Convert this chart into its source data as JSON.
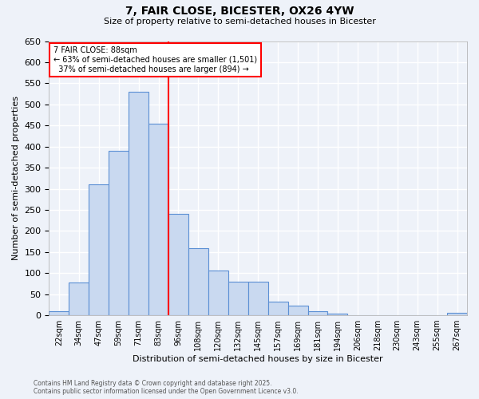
{
  "title1": "7, FAIR CLOSE, BICESTER, OX26 4YW",
  "title2": "Size of property relative to semi-detached houses in Bicester",
  "xlabel": "Distribution of semi-detached houses by size in Bicester",
  "ylabel": "Number of semi-detached properties",
  "bin_labels": [
    "22sqm",
    "34sqm",
    "47sqm",
    "59sqm",
    "71sqm",
    "83sqm",
    "96sqm",
    "108sqm",
    "120sqm",
    "132sqm",
    "145sqm",
    "157sqm",
    "169sqm",
    "181sqm",
    "194sqm",
    "206sqm",
    "218sqm",
    "230sqm",
    "243sqm",
    "255sqm",
    "267sqm"
  ],
  "bar_heights": [
    10,
    77,
    310,
    390,
    530,
    455,
    240,
    160,
    107,
    80,
    80,
    32,
    22,
    9,
    4,
    0,
    0,
    0,
    0,
    0,
    5
  ],
  "bar_color": "#c9d9f0",
  "bar_edge_color": "#5b8fd4",
  "property_label": "7 FAIR CLOSE: 88sqm",
  "vline_x_index": 5.5,
  "pct_smaller": 63,
  "n_smaller": 1501,
  "pct_larger": 37,
  "n_larger": 894,
  "vline_color": "red",
  "ylim": [
    0,
    650
  ],
  "yticks": [
    0,
    50,
    100,
    150,
    200,
    250,
    300,
    350,
    400,
    450,
    500,
    550,
    600,
    650
  ],
  "footnote1": "Contains HM Land Registry data © Crown copyright and database right 2025.",
  "footnote2": "Contains public sector information licensed under the Open Government Licence v3.0.",
  "bg_color": "#eef2f9",
  "grid_color": "#ffffff"
}
